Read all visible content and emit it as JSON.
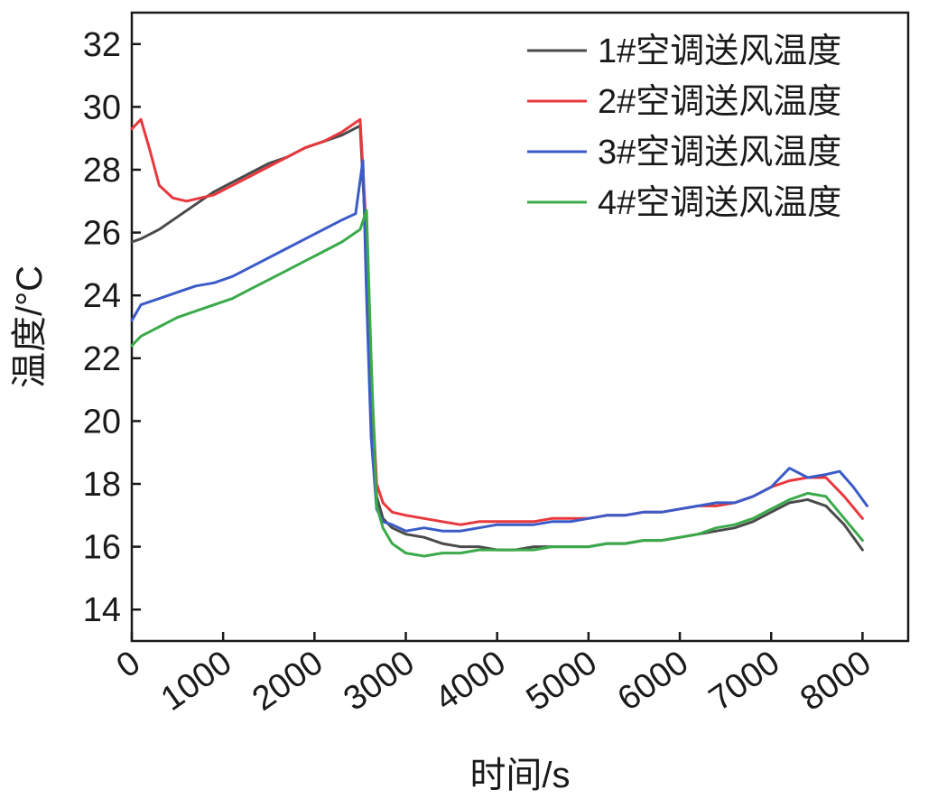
{
  "chart_data": {
    "type": "line",
    "xlabel": "时间/s",
    "ylabel": "温度/°C",
    "xlim": [
      0,
      8500
    ],
    "ylim": [
      13,
      33
    ],
    "xticks": [
      0,
      1000,
      2000,
      3000,
      4000,
      5000,
      6000,
      7000,
      8000
    ],
    "yticks": [
      14,
      16,
      18,
      20,
      22,
      24,
      26,
      28,
      30,
      32
    ],
    "grid": false,
    "legend_position": "top-right",
    "series": [
      {
        "name": "1#空调送风温度",
        "color": "#4a4a4a",
        "x": [
          0,
          100,
          300,
          500,
          700,
          900,
          1100,
          1300,
          1500,
          1700,
          1900,
          2100,
          2300,
          2500,
          2560,
          2620,
          2680,
          2750,
          2850,
          3000,
          3200,
          3400,
          3600,
          3800,
          4000,
          4200,
          4400,
          4600,
          4800,
          5000,
          5200,
          5400,
          5600,
          5800,
          6000,
          6200,
          6400,
          6600,
          6800,
          7000,
          7200,
          7400,
          7600,
          7800,
          8000
        ],
        "y": [
          25.7,
          25.8,
          26.1,
          26.5,
          26.9,
          27.3,
          27.6,
          27.9,
          28.2,
          28.4,
          28.7,
          28.9,
          29.1,
          29.4,
          26.0,
          21.0,
          17.6,
          16.9,
          16.6,
          16.4,
          16.3,
          16.1,
          16.0,
          16.0,
          15.9,
          15.9,
          16.0,
          16.0,
          16.0,
          16.0,
          16.1,
          16.1,
          16.2,
          16.2,
          16.3,
          16.4,
          16.5,
          16.6,
          16.8,
          17.1,
          17.4,
          17.5,
          17.3,
          16.7,
          15.9
        ]
      },
      {
        "name": "2#空调送风温度",
        "color": "#e8383d",
        "x": [
          0,
          100,
          200,
          300,
          450,
          600,
          750,
          900,
          1100,
          1300,
          1500,
          1700,
          1900,
          2100,
          2300,
          2500,
          2560,
          2620,
          2680,
          2750,
          2850,
          3000,
          3200,
          3400,
          3600,
          3800,
          4000,
          4200,
          4400,
          4600,
          4800,
          5000,
          5200,
          5400,
          5600,
          5800,
          6000,
          6200,
          6400,
          6600,
          6800,
          7000,
          7200,
          7400,
          7600,
          7800,
          8000
        ],
        "y": [
          29.3,
          29.6,
          28.6,
          27.5,
          27.1,
          27.0,
          27.1,
          27.2,
          27.5,
          27.8,
          28.1,
          28.4,
          28.7,
          28.9,
          29.2,
          29.6,
          26.5,
          21.5,
          18.0,
          17.4,
          17.1,
          17.0,
          16.9,
          16.8,
          16.7,
          16.8,
          16.8,
          16.8,
          16.8,
          16.9,
          16.9,
          16.9,
          17.0,
          17.0,
          17.1,
          17.1,
          17.2,
          17.3,
          17.3,
          17.4,
          17.6,
          17.9,
          18.1,
          18.2,
          18.2,
          17.6,
          16.9
        ]
      },
      {
        "name": "3#空调送风温度",
        "color": "#3b5bc8",
        "x": [
          0,
          100,
          300,
          500,
          700,
          900,
          1100,
          1300,
          1500,
          1700,
          1900,
          2100,
          2300,
          2450,
          2530,
          2570,
          2620,
          2680,
          2750,
          2850,
          3000,
          3200,
          3400,
          3600,
          3800,
          4000,
          4200,
          4400,
          4600,
          4800,
          5000,
          5200,
          5400,
          5600,
          5800,
          6000,
          6200,
          6400,
          6600,
          6800,
          7000,
          7200,
          7400,
          7600,
          7750,
          7900,
          8050
        ],
        "y": [
          23.2,
          23.7,
          23.9,
          24.1,
          24.3,
          24.4,
          24.6,
          24.9,
          25.2,
          25.5,
          25.8,
          26.1,
          26.4,
          26.6,
          28.3,
          24.0,
          19.5,
          17.2,
          16.8,
          16.7,
          16.5,
          16.6,
          16.5,
          16.5,
          16.6,
          16.7,
          16.7,
          16.7,
          16.8,
          16.8,
          16.9,
          17.0,
          17.0,
          17.1,
          17.1,
          17.2,
          17.3,
          17.4,
          17.4,
          17.6,
          17.9,
          18.5,
          18.2,
          18.3,
          18.4,
          17.9,
          17.3
        ]
      },
      {
        "name": "4#空调送风温度",
        "color": "#3aaa4a",
        "x": [
          0,
          100,
          300,
          500,
          700,
          900,
          1100,
          1300,
          1500,
          1700,
          1900,
          2100,
          2300,
          2500,
          2570,
          2620,
          2680,
          2750,
          2850,
          3000,
          3200,
          3400,
          3600,
          3800,
          4000,
          4200,
          4400,
          4600,
          4800,
          5000,
          5200,
          5400,
          5600,
          5800,
          6000,
          6200,
          6400,
          6600,
          6800,
          7000,
          7200,
          7400,
          7600,
          7800,
          8000
        ],
        "y": [
          22.4,
          22.7,
          23.0,
          23.3,
          23.5,
          23.7,
          23.9,
          24.2,
          24.5,
          24.8,
          25.1,
          25.4,
          25.7,
          26.1,
          26.7,
          22.0,
          17.3,
          16.6,
          16.1,
          15.8,
          15.7,
          15.8,
          15.8,
          15.9,
          15.9,
          15.9,
          15.9,
          16.0,
          16.0,
          16.0,
          16.1,
          16.1,
          16.2,
          16.2,
          16.3,
          16.4,
          16.6,
          16.7,
          16.9,
          17.2,
          17.5,
          17.7,
          17.6,
          16.9,
          16.2
        ]
      }
    ]
  }
}
